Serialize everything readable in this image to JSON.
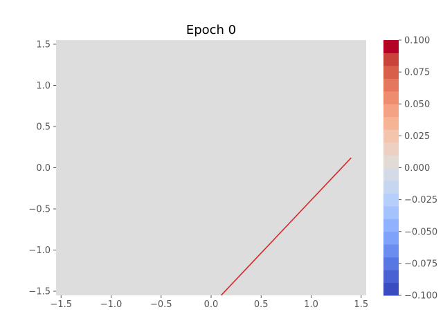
{
  "chart_data": {
    "type": "contour",
    "title": "Epoch 0",
    "xlabel": "",
    "ylabel": "",
    "xlim": [
      -1.55,
      1.55
    ],
    "ylim": [
      -1.55,
      1.55
    ],
    "x_ticks": [
      "−1.5",
      "−1.0",
      "−0.5",
      "0.0",
      "0.5",
      "1.0",
      "1.5"
    ],
    "x_tick_values": [
      -1.5,
      -1.0,
      -0.5,
      0.0,
      0.5,
      1.0,
      1.5
    ],
    "y_ticks": [
      "−1.5",
      "−1.0",
      "−0.5",
      "0.0",
      "0.5",
      "1.0",
      "1.5"
    ],
    "y_tick_values": [
      -1.5,
      -1.0,
      -0.5,
      0.0,
      0.5,
      1.0,
      1.5
    ],
    "field_value": 0.0,
    "field_color": "#dddddd",
    "decision_line": {
      "color": "#d62728",
      "x": [
        0.1,
        1.4
      ],
      "y": [
        -1.55,
        0.12
      ]
    },
    "colorbar": {
      "ticks": [
        "−0.100",
        "−0.075",
        "−0.050",
        "−0.025",
        "0.000",
        "0.025",
        "0.050",
        "0.075",
        "0.100"
      ],
      "tick_values": [
        -0.1,
        -0.075,
        -0.05,
        -0.025,
        0.0,
        0.025,
        0.05,
        0.075,
        0.1
      ],
      "range": [
        -0.1,
        0.1
      ],
      "levels": 20,
      "colors": [
        "#3b4cc0",
        "#4961d2",
        "#5977e3",
        "#6b8df0",
        "#7ea1f9",
        "#90b2fe",
        "#a3c2fe",
        "#b5cffa",
        "#c6d6f1",
        "#d4dbe6",
        "#e2dad5",
        "#edd0c2",
        "#f4c4ad",
        "#f6b497",
        "#f4a283",
        "#ee8d6e",
        "#e5785c",
        "#d85f4a",
        "#c8443a",
        "#b40426"
      ]
    }
  }
}
